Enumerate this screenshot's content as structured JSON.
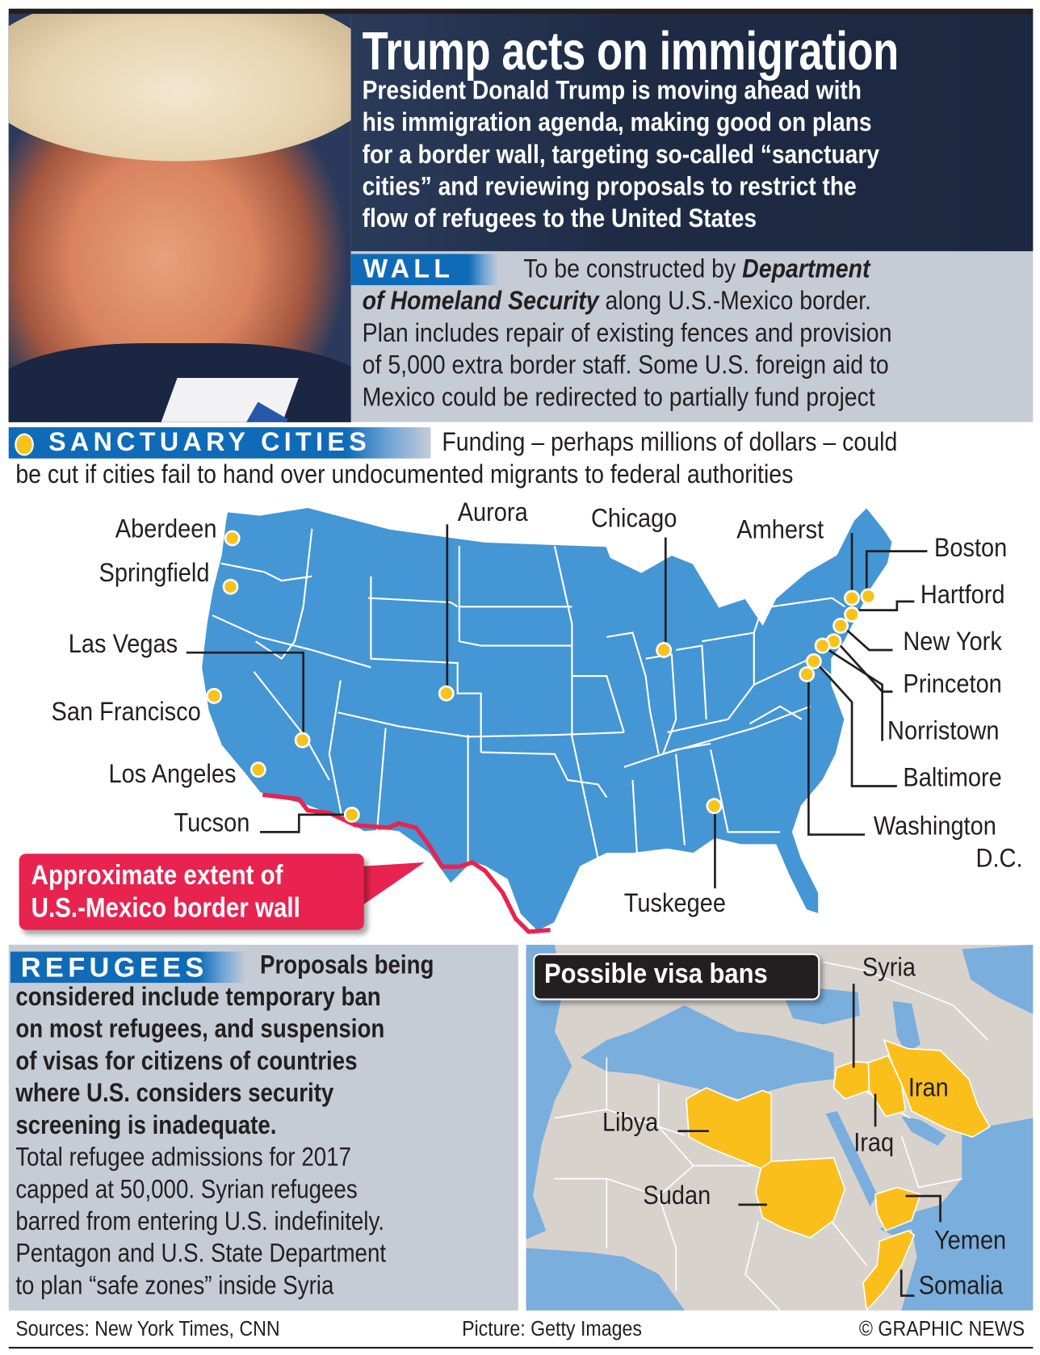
{
  "header": {
    "title": "Trump acts on immigration",
    "subtitle_lines": [
      "President Donald Trump is moving ahead with",
      "his immigration agenda, making good on plans",
      "for a border wall, targeting so-called “sanctuary",
      "cities” and reviewing proposals to restrict the",
      "flow of refugees to the United States"
    ]
  },
  "wall": {
    "label": "WALL",
    "line1_plain": "To be constructed by ",
    "line1_bold": "Department",
    "line2_bold": "of Homeland Security",
    "line2_plain": " along U.S.-Mexico border.",
    "lines": [
      "Plan includes repair of existing fences and provision",
      "of 5,000 extra border staff. Some U.S. foreign aid to",
      "Mexico could be redirected to partially fund project"
    ]
  },
  "sanctuary": {
    "label": "SANCTUARY CITIES",
    "line1": "Funding – perhaps millions of dollars – could",
    "line2": "be cut if cities fail to hand over undocumented migrants to federal authorities",
    "cities": [
      "Aberdeen",
      "Springfield",
      "Las Vegas",
      "San Francisco",
      "Los Angeles",
      "Tucson",
      "Aurora",
      "Chicago",
      "Amherst",
      "Boston",
      "Hartford",
      "New York",
      "Princeton",
      "Norristown",
      "Baltimore",
      "Washington",
      "D.C.",
      "Tuskegee"
    ],
    "callout_lines": [
      "Approximate extent of",
      "U.S.-Mexico border wall"
    ]
  },
  "refugees": {
    "label": "REFUGEES",
    "bold_first": "Proposals being",
    "bold_lines": [
      "considered include temporary ban",
      "on most refugees, and suspension",
      "of visas for citizens of countries",
      "where U.S. considers security",
      "screening is inadequate."
    ],
    "lines": [
      "Total refugee admissions for 2017",
      "capped at 50,000. Syrian refugees",
      "barred from entering U.S. indefinitely.",
      "Pentagon and U.S. State Department",
      "to plan “safe zones” inside Syria"
    ]
  },
  "visa_map": {
    "title": "Possible visa bans",
    "countries": [
      "Syria",
      "Iran",
      "Iraq",
      "Libya",
      "Sudan",
      "Yemen",
      "Somalia"
    ]
  },
  "footer": {
    "sources": "Sources: New York Times, CNN",
    "picture": "Picture: Getty Images",
    "copyright": "© GRAPHIC NEWS"
  },
  "colors": {
    "map_blue": "#4596d4",
    "city_dot": "#f7c31b",
    "border_wall": "#e8234f",
    "tag_blue": "#0f6bb7",
    "panel_grey": "#c5ccd6",
    "header_navy": "#1f2b45",
    "ban_yellow": "#fbbf1c",
    "sea_blue": "#7aaedc",
    "land_grey": "#d8d2cd"
  }
}
